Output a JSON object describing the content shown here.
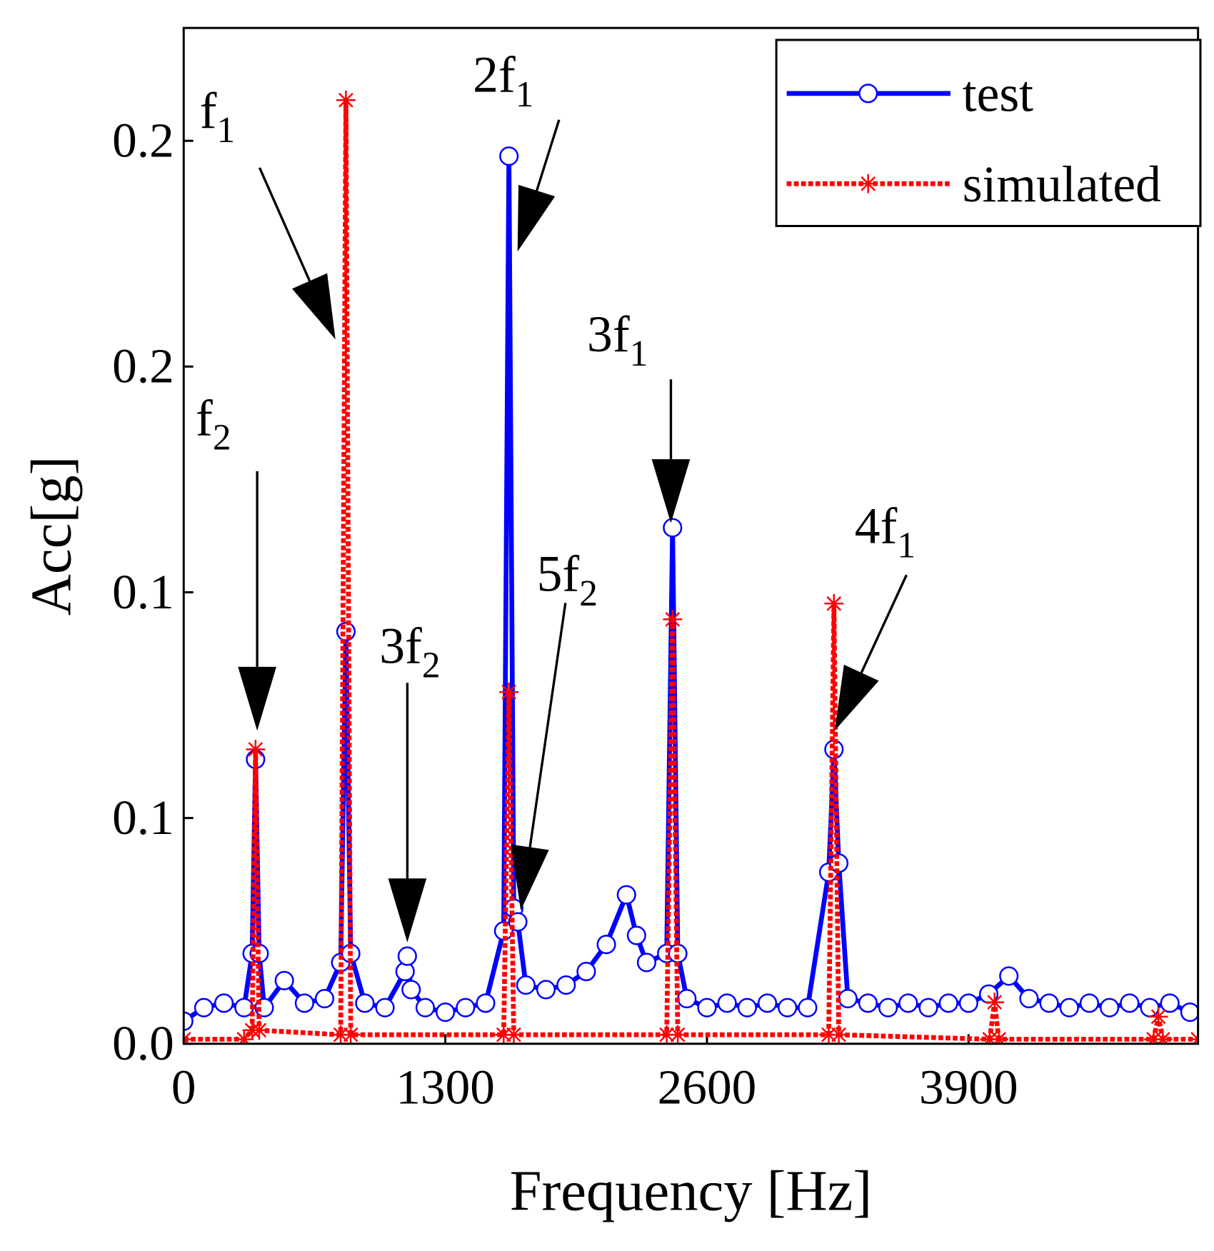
{
  "chart_data": {
    "type": "line",
    "xlabel": "Frequency [Hz]",
    "ylabel": "Acc[g]",
    "xlim": [
      0,
      5040
    ],
    "xticks": [
      0,
      1300,
      2600,
      3900
    ],
    "ylim": [
      0,
      0.225
    ],
    "yticks": [
      {
        "value": 0,
        "label": "0.0"
      },
      {
        "value": 0.05,
        "label": "0.1"
      },
      {
        "value": 0.1,
        "label": "0.1"
      },
      {
        "value": 0.15,
        "label": "0.2"
      },
      0.2
    ],
    "legend": "upper right",
    "series": [
      {
        "name": "test",
        "color": "#0000ff",
        "marker": "circle",
        "x": [
          0,
          100,
          200,
          300,
          340,
          357,
          375,
          400,
          500,
          600,
          700,
          780,
          806,
          830,
          900,
          1000,
          1100,
          1111,
          1130,
          1200,
          1300,
          1400,
          1500,
          1590,
          1616,
          1640,
          1660,
          1700,
          1800,
          1900,
          2000,
          2100,
          2200,
          2250,
          2300,
          2400,
          2429,
          2455,
          2500,
          2600,
          2700,
          2800,
          2900,
          3000,
          3100,
          3205,
          3231,
          3255,
          3300,
          3400,
          3500,
          3600,
          3700,
          3800,
          3900,
          4000,
          4100,
          4200,
          4300,
          4400,
          4500,
          4600,
          4700,
          4800,
          4900,
          5000
        ],
        "values": [
          0.005,
          0.008,
          0.009,
          0.008,
          0.02,
          0.063,
          0.02,
          0.008,
          0.014,
          0.009,
          0.01,
          0.018,
          0.0913,
          0.02,
          0.009,
          0.008,
          0.016,
          0.0194,
          0.012,
          0.008,
          0.007,
          0.008,
          0.009,
          0.025,
          0.1966,
          0.03,
          0.027,
          0.013,
          0.012,
          0.013,
          0.016,
          0.022,
          0.033,
          0.024,
          0.018,
          0.02,
          0.1143,
          0.02,
          0.01,
          0.008,
          0.009,
          0.008,
          0.009,
          0.008,
          0.008,
          0.038,
          0.0652,
          0.04,
          0.01,
          0.009,
          0.008,
          0.009,
          0.008,
          0.009,
          0.009,
          0.011,
          0.015,
          0.01,
          0.009,
          0.008,
          0.009,
          0.008,
          0.009,
          0.008,
          0.009,
          0.007
        ]
      },
      {
        "name": "simulated",
        "color": "#ff0000",
        "marker": "star",
        "x": [
          0,
          300,
          340,
          357,
          375,
          780,
          806,
          830,
          1590,
          1616,
          1640,
          2400,
          2429,
          2455,
          3205,
          3231,
          3255,
          4005,
          4029,
          4050,
          4820,
          4843,
          4865,
          5040
        ],
        "values": [
          0.001,
          0.001,
          0.003,
          0.0652,
          0.003,
          0.002,
          0.209,
          0.002,
          0.002,
          0.0779,
          0.002,
          0.002,
          0.094,
          0.002,
          0.002,
          0.0975,
          0.002,
          0.001,
          0.0092,
          0.001,
          0.001,
          0.006,
          0.001,
          0.001
        ]
      }
    ],
    "annotations": [
      {
        "text": "f",
        "sub": "1"
      },
      {
        "text": "f",
        "sub": "2"
      },
      {
        "text": "3f",
        "sub": "2"
      },
      {
        "text": "2f",
        "sub": "1"
      },
      {
        "text": "5f",
        "sub": "2"
      },
      {
        "text": "3f",
        "sub": "1"
      },
      {
        "text": "4f",
        "sub": "1"
      }
    ]
  }
}
